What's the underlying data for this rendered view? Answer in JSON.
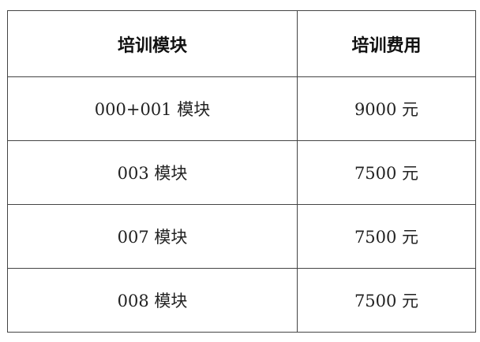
{
  "table": {
    "headers": [
      "培训模块",
      "培训费用"
    ],
    "rows": [
      [
        "000+001 模块",
        "9000 元"
      ],
      [
        "003 模块",
        "7500 元"
      ],
      [
        "007 模块",
        "7500 元"
      ],
      [
        "008 模块",
        "7500 元"
      ]
    ]
  }
}
